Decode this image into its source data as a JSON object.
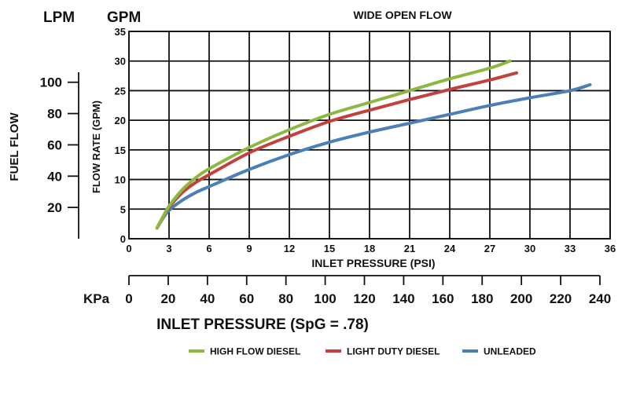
{
  "chart_data": {
    "type": "line",
    "title": "WIDE OPEN FLOW",
    "xlabel": "INLET PRESSURE (PSI)",
    "ylabel": "FLOW RATE (GPM)",
    "xlim": [
      0,
      36
    ],
    "ylim": [
      0,
      35
    ],
    "xticks": [
      0,
      3,
      6,
      9,
      12,
      15,
      18,
      21,
      24,
      27,
      30,
      33,
      36
    ],
    "yticks": [
      0,
      5,
      10,
      15,
      20,
      25,
      30,
      35
    ],
    "grid": true,
    "series": [
      {
        "name": "HIGH FLOW DIESEL",
        "color": "#8cb83f",
        "x": [
          2.1,
          2.5,
          3,
          4,
          5,
          6,
          9,
          12,
          15,
          18,
          21,
          24,
          27,
          28.5
        ],
        "y": [
          1.8,
          3.5,
          5.5,
          8.3,
          10.3,
          11.8,
          15.4,
          18.4,
          21,
          23,
          25,
          27,
          28.8,
          30
        ]
      },
      {
        "name": "LIGHT DUTY DIESEL",
        "color": "#c0413d",
        "x": [
          2.1,
          2.5,
          3,
          4,
          5,
          6,
          9,
          12,
          15,
          18,
          21,
          24,
          27,
          29
        ],
        "y": [
          1.8,
          3.5,
          5.3,
          7.8,
          9.5,
          10.8,
          14.5,
          17.3,
          19.8,
          21.7,
          23.5,
          25.2,
          26.8,
          28
        ]
      },
      {
        "name": "UNLEADED",
        "color": "#4a7fb8",
        "x": [
          2.1,
          2.5,
          3,
          4,
          5,
          6,
          9,
          12,
          15,
          18,
          21,
          24,
          27,
          30,
          33,
          34.5
        ],
        "y": [
          1.8,
          3.3,
          4.8,
          6.5,
          7.8,
          8.8,
          11.7,
          14.2,
          16.3,
          18,
          19.5,
          21,
          22.5,
          23.8,
          25,
          26
        ]
      }
    ],
    "lpm_axis": {
      "label": "LPM",
      "ticks": [
        20,
        40,
        60,
        80,
        100
      ]
    },
    "gpm_label": "GPM",
    "fuel_flow_label": "FUEL FLOW",
    "kpa_axis": {
      "label": "KPa",
      "ticks": [
        0,
        20,
        40,
        60,
        80,
        100,
        120,
        140,
        160,
        180,
        200,
        220,
        240
      ],
      "title": "INLET PRESSURE (SpG = .78)"
    }
  }
}
